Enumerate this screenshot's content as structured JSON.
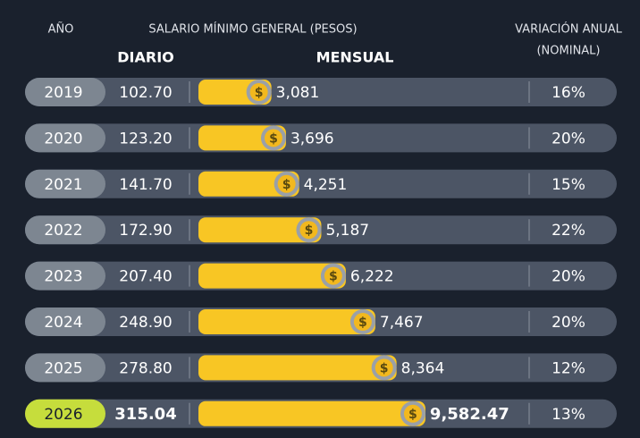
{
  "chart_data": {
    "type": "bar",
    "header": {
      "year": "AÑO",
      "title": "SALARIO MÍNIMO GENERAL (PESOS)",
      "daily": "DIARIO",
      "monthly": "MENSUAL",
      "variation_line1": "VARIACIÓN ANUAL",
      "variation_line2": "(NOMINAL)"
    },
    "currency_symbol": "$",
    "categories": [
      "2019",
      "2020",
      "2021",
      "2022",
      "2023",
      "2024",
      "2025",
      "2026"
    ],
    "values": [
      3081,
      3696,
      4251,
      5187,
      6222,
      7467,
      8364,
      9582.47
    ],
    "value_labels": [
      "3,081",
      "3,696",
      "4,251",
      "5,187",
      "6,222",
      "7,467",
      "8,364",
      "9,582.47"
    ],
    "color": "#f8c624",
    "daily_values": [
      "102.70",
      "123.20",
      "141.70",
      "172.90",
      "207.40",
      "248.90",
      "278.80",
      "315.04"
    ],
    "variation_values": [
      "16%",
      "20%",
      "15%",
      "22%",
      "20%",
      "20%",
      "12%",
      "13%"
    ]
  }
}
